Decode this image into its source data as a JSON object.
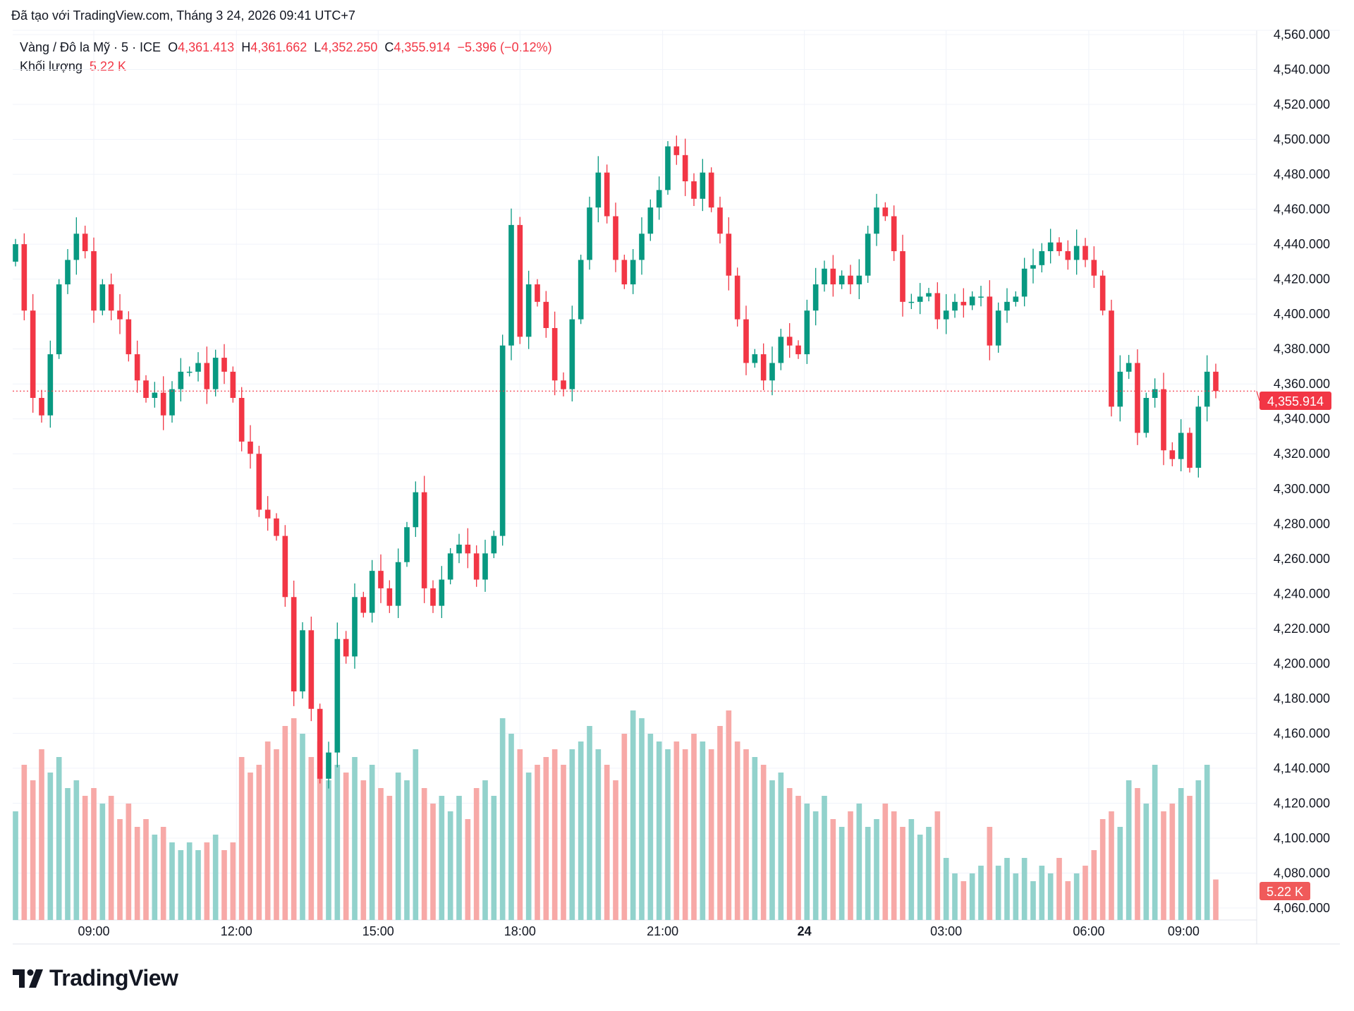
{
  "caption": "Đã tạo với TradingView.com, Tháng 3 24, 2026 09:41 UTC+7",
  "legend": {
    "symbol": "Vàng / Đô la Mỹ · 5 · ICE",
    "o_label": "O",
    "o_value": "4,361.413",
    "h_label": "H",
    "h_value": "4,361.662",
    "l_label": "L",
    "l_value": "4,352.250",
    "c_label": "C",
    "c_value": "4,355.914",
    "change": "−5.396 (−0.12%)",
    "volume_label": "Khối lượng",
    "volume_value": "5.22 K"
  },
  "logo": "TradingView",
  "colors": {
    "up": "#089981",
    "down": "#f23645",
    "up_volume": "#92d2cc",
    "down_volume": "#f7a9a7",
    "grid": "#f0f3fa"
  },
  "chart_data": {
    "type": "candlestick",
    "interval": "5",
    "first_open": 4430,
    "close": [
      4440,
      4402,
      4352,
      4342,
      4377,
      4417,
      4431,
      4446,
      4436,
      4402,
      4417,
      4402,
      4397,
      4377,
      4362,
      4352,
      4355,
      4342,
      4357,
      4367,
      4367,
      4372,
      4357,
      4375,
      4367,
      4352,
      4327,
      4320,
      4288,
      4283,
      4273,
      4238,
      4184,
      4219,
      4174,
      4134,
      4149,
      4214,
      4204,
      4238,
      4229,
      4253,
      4243,
      4233,
      4258,
      4278,
      4298,
      4243,
      4233,
      4248,
      4263,
      4268,
      4263,
      4248,
      4263,
      4273,
      4382,
      4451,
      4387,
      4417,
      4407,
      4392,
      4362,
      4357,
      4397,
      4431,
      4461,
      4481,
      4456,
      4431,
      4417,
      4431,
      4446,
      4461,
      4471,
      4496,
      4491,
      4476,
      4466,
      4481,
      4461,
      4446,
      4422,
      4397,
      4372,
      4377,
      4362,
      4372,
      4387,
      4382,
      4377,
      4402,
      4417,
      4426,
      4417,
      4422,
      4417,
      4422,
      4446,
      4461,
      4456,
      4436,
      4407,
      4407,
      4410,
      4412,
      4397,
      4402,
      4407,
      4405,
      4410,
      4410,
      4382,
      4402,
      4407,
      4410,
      4426,
      4428,
      4436,
      4441,
      4436,
      4431,
      4439,
      4431,
      4422,
      4402,
      4347,
      4367,
      4372,
      4332,
      4352,
      4357,
      4322,
      4317,
      4332,
      4312,
      4347,
      4367,
      4355.914
    ],
    "volume_k": [
      14,
      20,
      18,
      22,
      19,
      21,
      17,
      18,
      16,
      17,
      15,
      16,
      13,
      15,
      12,
      13,
      11,
      12,
      10,
      9,
      10,
      9,
      10,
      11,
      9,
      10,
      21,
      19,
      20,
      23,
      22,
      25,
      26,
      24,
      21,
      23,
      18,
      20,
      19,
      21,
      18,
      20,
      17,
      16,
      19,
      18,
      22,
      17,
      15,
      16,
      14,
      16,
      13,
      17,
      18,
      16,
      26,
      24,
      22,
      19,
      20,
      21,
      22,
      20,
      22,
      23,
      25,
      22,
      20,
      18,
      24,
      27,
      26,
      24,
      23,
      22,
      23,
      22,
      24,
      23,
      22,
      25,
      27,
      23,
      22,
      21,
      20,
      18,
      19,
      17,
      16,
      15,
      14,
      16,
      13,
      12,
      14,
      15,
      12,
      13,
      15,
      14,
      12,
      13,
      11,
      12,
      14,
      8,
      6,
      5,
      6,
      7,
      12,
      7,
      8,
      6,
      8,
      5,
      7,
      6,
      8,
      5,
      6,
      7,
      9,
      13,
      14,
      12,
      18,
      17,
      15,
      20,
      14,
      15,
      17,
      16,
      18,
      20,
      5.22
    ],
    "ylim": [
      4060,
      4560
    ],
    "y_ticks": [
      "4,560.000",
      "4,540.000",
      "4,520.000",
      "4,500.000",
      "4,480.000",
      "4,460.000",
      "4,440.000",
      "4,420.000",
      "4,400.000",
      "4,380.000",
      "4,360.000",
      "4,340.000",
      "4,320.000",
      "4,300.000",
      "4,280.000",
      "4,260.000",
      "4,240.000",
      "4,220.000",
      "4,200.000",
      "4,180.000",
      "4,160.000",
      "4,140.000",
      "4,120.000",
      "4,100.000",
      "4,080.000",
      "4,060.000"
    ],
    "x_ticks": [
      "09:00",
      "12:00",
      "15:00",
      "18:00",
      "21:00",
      "24",
      "03:00",
      "06:00",
      "09:00"
    ],
    "last_price_label": "4,355.914",
    "last_volume_label": "5.22 K",
    "grid": true
  }
}
